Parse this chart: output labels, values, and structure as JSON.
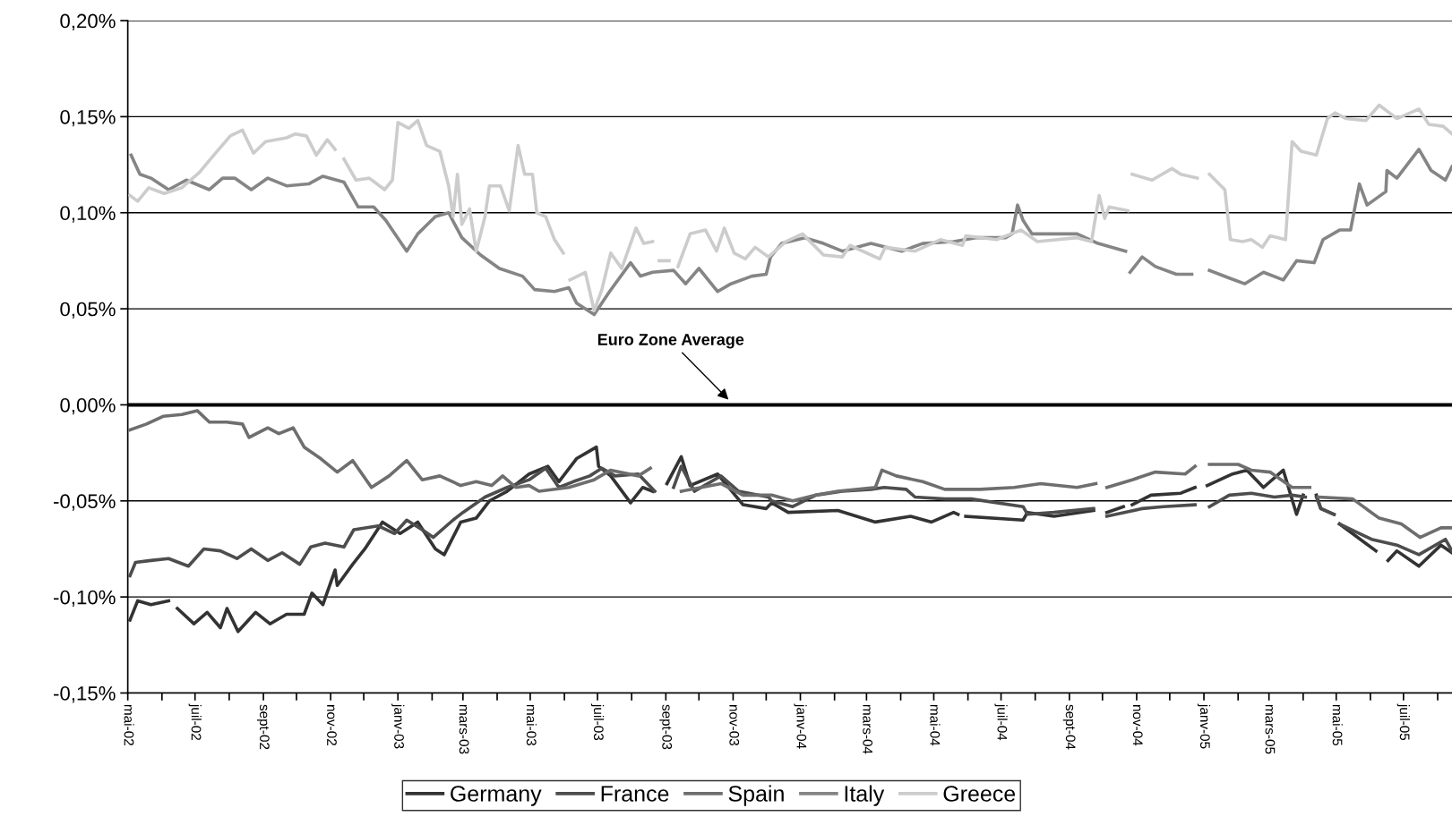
{
  "chart_data": {
    "type": "line",
    "xlim": [
      "2002-05-01",
      "2005-08-14"
    ],
    "xticks": [
      {
        "value": "2002-05-01",
        "label": "mai-02"
      },
      {
        "value": "2002-06-01",
        "label": null
      },
      {
        "value": "2002-07-01",
        "label": "juil-02"
      },
      {
        "value": "2002-08-01",
        "label": null
      },
      {
        "value": "2002-09-01",
        "label": "sept-02"
      },
      {
        "value": "2002-10-01",
        "label": null
      },
      {
        "value": "2002-11-01",
        "label": "nov-02"
      },
      {
        "value": "2002-12-01",
        "label": null
      },
      {
        "value": "2003-01-01",
        "label": "janv-03"
      },
      {
        "value": "2003-02-01",
        "label": null
      },
      {
        "value": "2003-03-01",
        "label": "mars-03"
      },
      {
        "value": "2003-04-01",
        "label": null
      },
      {
        "value": "2003-05-01",
        "label": "mai-03"
      },
      {
        "value": "2003-06-01",
        "label": null
      },
      {
        "value": "2003-07-01",
        "label": "juil-03"
      },
      {
        "value": "2003-08-01",
        "label": null
      },
      {
        "value": "2003-09-01",
        "label": "sept-03"
      },
      {
        "value": "2003-10-01",
        "label": null
      },
      {
        "value": "2003-11-01",
        "label": "nov-03"
      },
      {
        "value": "2003-12-01",
        "label": null
      },
      {
        "value": "2004-01-01",
        "label": "janv-04"
      },
      {
        "value": "2004-02-01",
        "label": null
      },
      {
        "value": "2004-03-01",
        "label": "mars-04"
      },
      {
        "value": "2004-04-01",
        "label": null
      },
      {
        "value": "2004-05-01",
        "label": "mai-04"
      },
      {
        "value": "2004-06-01",
        "label": null
      },
      {
        "value": "2004-07-01",
        "label": "juil-04"
      },
      {
        "value": "2004-08-01",
        "label": null
      },
      {
        "value": "2004-09-01",
        "label": "sept-04"
      },
      {
        "value": "2004-10-01",
        "label": null
      },
      {
        "value": "2004-11-01",
        "label": "nov-04"
      },
      {
        "value": "2004-12-01",
        "label": null
      },
      {
        "value": "2005-01-01",
        "label": "janv-05"
      },
      {
        "value": "2005-02-01",
        "label": null
      },
      {
        "value": "2005-03-01",
        "label": "mars-05"
      },
      {
        "value": "2005-04-01",
        "label": null
      },
      {
        "value": "2005-05-01",
        "label": "mai-05"
      },
      {
        "value": "2005-06-01",
        "label": null
      },
      {
        "value": "2005-07-01",
        "label": "juil-05"
      },
      {
        "value": "2005-08-01",
        "label": null
      }
    ],
    "ylim": [
      -0.15,
      0.2
    ],
    "yticks": [
      {
        "value": -0.15,
        "label": "-0,15%"
      },
      {
        "value": -0.1,
        "label": "-0,10%"
      },
      {
        "value": -0.05,
        "label": "-0,05%"
      },
      {
        "value": 0,
        "label": "0,00%"
      },
      {
        "value": 0.05,
        "label": "0,05%"
      },
      {
        "value": 0.1,
        "label": "0,10%"
      },
      {
        "value": 0.15,
        "label": "0,15%"
      },
      {
        "value": 0.2,
        "label": "0,20%"
      }
    ],
    "grid": "y",
    "legend": "bottom",
    "marker": "none",
    "line_style": "solid",
    "ref_lines": [
      {
        "axis": "y",
        "value": 0,
        "label": "Euro Zone Average",
        "color": "#000000"
      }
    ],
    "series": [
      {
        "name": "Germany",
        "color": "#333333",
        "x": [
          "2002-05-03",
          "2002-05-10",
          "2002-05-22",
          "2002-06-07",
          "2002-06-11",
          "2002-06-15",
          "2002-06-30",
          "2002-07-12",
          "2002-07-24",
          "2002-07-30",
          "2002-08-09",
          "2002-08-25",
          "2002-09-07",
          "2002-09-22",
          "2002-10-08",
          "2002-10-15",
          "2002-10-25",
          "2002-11-05",
          "2002-11-07",
          "2002-11-21",
          "2002-12-02",
          "2002-12-18",
          "2003-01-03",
          "2003-01-19",
          "2003-02-04",
          "2003-02-12",
          "2003-02-27",
          "2003-03-13",
          "2003-03-25",
          "2003-04-10",
          "2003-04-30",
          "2003-05-17",
          "2003-05-27",
          "2003-06-12",
          "2003-06-30",
          "2003-07-02",
          "2003-07-13",
          "2003-07-31",
          "2003-08-11",
          "2003-08-20",
          "2003-08-25",
          "2003-09-02",
          "2003-09-15",
          "2003-09-23",
          "2003-10-18",
          "2003-11-10",
          "2003-12-01",
          "2003-12-06",
          "2003-12-21",
          "2004-02-04",
          "2004-03-09",
          "2004-04-10",
          "2004-04-29",
          "2004-05-19",
          "2004-05-23",
          "2004-05-27",
          "2004-05-30",
          "2004-07-21",
          "2004-07-25",
          "2004-08-18",
          "2004-09-23",
          "2004-09-28",
          "2004-10-05",
          "2004-10-20",
          "2004-10-24",
          "2004-10-28",
          "2004-11-14",
          "2004-12-11",
          "2004-12-24",
          "2004-12-30",
          "2005-01-04",
          "2005-01-27",
          "2005-02-09",
          "2005-02-24",
          "2005-03-14",
          "2005-03-26",
          "2005-04-01",
          "2005-04-07",
          "2005-04-13",
          "2005-04-17",
          "2005-04-29",
          "2005-05-01",
          "2005-05-04",
          "2005-06-06",
          "2005-06-12",
          "2005-06-17",
          "2005-06-25",
          "2005-07-15",
          "2005-08-04",
          "2005-08-14"
        ],
        "values": [
          -0.112,
          -0.102,
          -0.104,
          -0.102,
          null,
          -0.106,
          -0.114,
          -0.108,
          -0.116,
          -0.106,
          -0.118,
          -0.108,
          -0.114,
          -0.109,
          -0.109,
          -0.098,
          -0.104,
          -0.086,
          -0.094,
          -0.083,
          -0.075,
          -0.061,
          -0.067,
          -0.061,
          -0.075,
          -0.078,
          -0.061,
          -0.059,
          -0.05,
          -0.045,
          -0.036,
          -0.032,
          -0.04,
          -0.028,
          -0.022,
          -0.032,
          -0.037,
          -0.051,
          -0.043,
          -0.045,
          null,
          -0.041,
          -0.027,
          -0.042,
          -0.036,
          -0.052,
          -0.054,
          -0.051,
          -0.056,
          -0.055,
          -0.061,
          -0.058,
          -0.061,
          -0.056,
          -0.057,
          null,
          -0.058,
          -0.06,
          -0.056,
          -0.058,
          -0.055,
          null,
          -0.056,
          -0.053,
          null,
          -0.052,
          -0.047,
          -0.046,
          -0.043,
          null,
          -0.042,
          -0.036,
          -0.034,
          -0.043,
          -0.034,
          -0.057,
          -0.047,
          null,
          -0.047,
          -0.054,
          -0.057,
          null,
          -0.062,
          -0.076,
          null,
          -0.081,
          -0.076,
          -0.084,
          -0.073,
          -0.077
        ]
      },
      {
        "name": "France",
        "color": "#4d4d4d",
        "x": [
          "2002-05-03",
          "2002-05-08",
          "2002-05-22",
          "2002-06-07",
          "2002-06-25",
          "2002-07-09",
          "2002-07-24",
          "2002-08-08",
          "2002-08-21",
          "2002-09-05",
          "2002-09-18",
          "2002-10-04",
          "2002-10-14",
          "2002-10-27",
          "2002-11-13",
          "2002-11-22",
          "2002-12-14",
          "2002-12-29",
          "2003-01-09",
          "2003-01-23",
          "2003-02-02",
          "2003-02-20",
          "2003-03-01",
          "2003-03-21",
          "2003-04-10",
          "2003-04-30",
          "2003-05-15",
          "2003-05-27",
          "2003-06-09",
          "2003-06-24",
          "2003-07-05",
          "2003-07-17",
          "2003-08-07",
          "2003-08-22",
          "2003-08-30",
          "2003-09-08",
          "2003-09-15",
          "2003-09-27",
          "2003-10-21",
          "2003-11-06",
          "2003-12-03",
          "2003-12-06",
          "2003-12-25",
          "2004-01-15",
          "2004-02-08",
          "2004-03-05",
          "2004-03-17",
          "2004-04-06",
          "2004-04-14",
          "2004-05-11",
          "2004-06-04",
          "2004-07-21",
          "2004-07-25",
          "2004-08-18",
          "2004-09-23",
          "2004-09-28",
          "2004-10-05",
          "2004-11-06",
          "2004-11-25",
          "2004-12-24",
          "2004-12-30",
          "2005-01-06",
          "2005-01-24",
          "2005-02-13",
          "2005-03-06",
          "2005-03-22",
          "2005-04-03",
          "2005-04-09",
          "2005-04-13",
          "2005-04-17",
          "2005-04-29",
          "2005-05-01",
          "2005-05-04",
          "2005-06-02",
          "2005-06-25",
          "2005-07-15",
          "2005-08-08",
          "2005-08-14"
        ],
        "values": [
          -0.089,
          -0.082,
          -0.081,
          -0.08,
          -0.084,
          -0.075,
          -0.076,
          -0.08,
          -0.075,
          -0.081,
          -0.077,
          -0.083,
          -0.074,
          -0.072,
          -0.074,
          -0.065,
          -0.063,
          -0.067,
          -0.06,
          -0.065,
          -0.069,
          -0.06,
          -0.056,
          -0.048,
          -0.043,
          -0.039,
          -0.033,
          -0.043,
          -0.04,
          -0.037,
          -0.033,
          -0.037,
          -0.036,
          -0.045,
          null,
          -0.043,
          -0.032,
          -0.045,
          -0.037,
          -0.045,
          -0.048,
          -0.05,
          -0.053,
          -0.047,
          -0.045,
          -0.044,
          -0.043,
          -0.044,
          -0.048,
          -0.049,
          -0.049,
          -0.053,
          -0.057,
          -0.056,
          -0.054,
          null,
          -0.058,
          -0.054,
          -0.053,
          -0.052,
          null,
          -0.053,
          -0.047,
          -0.046,
          -0.048,
          -0.047,
          -0.048,
          null,
          -0.048,
          -0.054,
          -0.057,
          null,
          -0.062,
          -0.07,
          -0.073,
          -0.078,
          -0.07,
          -0.076
        ]
      },
      {
        "name": "Spain",
        "color": "#6e6e6e",
        "x": [
          "2002-05-03",
          "2002-05-18",
          "2002-06-02",
          "2002-06-19",
          "2002-07-03",
          "2002-07-14",
          "2002-07-30",
          "2002-08-13",
          "2002-08-19",
          "2002-09-05",
          "2002-09-15",
          "2002-09-28",
          "2002-10-08",
          "2002-10-23",
          "2002-11-07",
          "2002-11-21",
          "2002-12-08",
          "2002-12-24",
          "2003-01-09",
          "2003-01-23",
          "2003-02-08",
          "2003-02-27",
          "2003-03-13",
          "2003-03-27",
          "2003-04-06",
          "2003-04-18",
          "2003-04-30",
          "2003-05-09",
          "2003-06-05",
          "2003-06-28",
          "2003-07-13",
          "2003-08-07",
          "2003-08-18",
          "2003-08-28",
          "2003-09-15",
          "2003-10-21",
          "2003-11-10",
          "2003-12-03",
          "2003-12-06",
          "2003-12-25",
          "2004-01-15",
          "2004-02-04",
          "2004-03-09",
          "2004-03-15",
          "2004-03-28",
          "2004-04-21",
          "2004-05-11",
          "2004-06-12",
          "2004-07-13",
          "2004-08-06",
          "2004-09-08",
          "2004-09-25",
          "2004-09-30",
          "2004-10-05",
          "2004-10-28",
          "2004-11-18",
          "2004-12-15",
          "2004-12-24",
          "2004-12-30",
          "2005-01-06",
          "2005-02-01",
          "2005-02-13",
          "2005-03-02",
          "2005-03-22",
          "2005-04-07",
          "2005-04-12",
          "2005-04-15",
          "2005-05-16",
          "2005-06-09",
          "2005-06-29",
          "2005-07-16",
          "2005-08-04",
          "2005-08-14"
        ],
        "values": [
          -0.013,
          -0.01,
          -0.006,
          -0.005,
          -0.003,
          -0.009,
          -0.009,
          -0.01,
          -0.017,
          -0.012,
          -0.015,
          -0.012,
          -0.022,
          -0.028,
          -0.035,
          -0.029,
          -0.043,
          -0.037,
          -0.029,
          -0.039,
          -0.037,
          -0.042,
          -0.04,
          -0.042,
          -0.037,
          -0.043,
          -0.042,
          -0.045,
          -0.043,
          -0.039,
          -0.034,
          -0.037,
          -0.033,
          null,
          -0.045,
          -0.041,
          -0.047,
          -0.047,
          -0.047,
          -0.05,
          -0.047,
          -0.045,
          -0.043,
          -0.034,
          -0.037,
          -0.04,
          -0.044,
          -0.044,
          -0.043,
          -0.041,
          -0.043,
          -0.041,
          null,
          -0.043,
          -0.039,
          -0.035,
          -0.036,
          -0.032,
          null,
          -0.031,
          -0.031,
          -0.034,
          -0.035,
          -0.043,
          -0.043,
          null,
          -0.048,
          -0.049,
          -0.059,
          -0.062,
          -0.069,
          -0.064,
          -0.064
        ]
      },
      {
        "name": "Italy",
        "color": "#858585",
        "x": [
          "2002-05-04",
          "2002-05-12",
          "2002-05-22",
          "2002-06-07",
          "2002-06-23",
          "2002-07-14",
          "2002-07-26",
          "2002-08-06",
          "2002-08-21",
          "2002-09-05",
          "2002-09-22",
          "2002-10-12",
          "2002-10-25",
          "2002-11-13",
          "2002-11-26",
          "2002-12-10",
          "2002-12-21",
          "2003-01-09",
          "2003-01-19",
          "2003-02-04",
          "2003-02-16",
          "2003-02-28",
          "2003-03-17",
          "2003-04-03",
          "2003-04-24",
          "2003-05-05",
          "2003-05-23",
          "2003-06-05",
          "2003-06-12",
          "2003-06-28",
          "2003-07-12",
          "2003-07-31",
          "2003-08-09",
          "2003-08-20",
          "2003-09-08",
          "2003-09-19",
          "2003-10-01",
          "2003-10-18",
          "2003-10-30",
          "2003-11-18",
          "2003-12-01",
          "2003-12-05",
          "2003-12-15",
          "2004-01-05",
          "2004-01-22",
          "2004-02-08",
          "2004-03-05",
          "2004-04-02",
          "2004-04-21",
          "2004-05-19",
          "2004-06-08",
          "2004-07-05",
          "2004-07-11",
          "2004-07-16",
          "2004-07-21",
          "2004-07-29",
          "2004-08-18",
          "2004-09-08",
          "2004-09-27",
          "2004-10-22",
          "2004-10-24",
          "2004-10-26",
          "2004-11-06",
          "2004-11-18",
          "2004-12-07",
          "2004-12-21",
          "2004-12-28",
          "2005-01-06",
          "2005-01-24",
          "2005-02-07",
          "2005-02-24",
          "2005-03-14",
          "2005-03-26",
          "2005-04-11",
          "2005-04-19",
          "2005-05-04",
          "2005-05-14",
          "2005-05-22",
          "2005-05-29",
          "2005-06-15",
          "2005-06-16",
          "2005-06-25",
          "2005-07-15",
          "2005-07-26",
          "2005-08-08",
          "2005-08-14"
        ],
        "values": [
          0.13,
          0.12,
          0.118,
          0.112,
          0.117,
          0.112,
          0.118,
          0.118,
          0.112,
          0.118,
          0.114,
          0.115,
          0.119,
          0.116,
          0.103,
          0.103,
          0.096,
          0.08,
          0.089,
          0.098,
          0.1,
          0.087,
          0.078,
          0.071,
          0.067,
          0.06,
          0.059,
          0.061,
          0.053,
          0.047,
          0.059,
          0.074,
          0.067,
          0.069,
          0.07,
          0.063,
          0.071,
          0.059,
          0.063,
          0.067,
          0.068,
          0.077,
          0.084,
          0.087,
          0.084,
          0.08,
          0.084,
          0.08,
          0.084,
          0.085,
          0.087,
          0.087,
          0.089,
          0.104,
          0.096,
          0.089,
          0.089,
          0.089,
          0.084,
          0.08,
          null,
          0.069,
          0.077,
          0.072,
          0.068,
          0.068,
          null,
          0.07,
          0.066,
          0.063,
          0.069,
          0.065,
          0.075,
          0.074,
          0.086,
          0.091,
          0.091,
          0.115,
          0.104,
          0.111,
          0.122,
          0.118,
          0.133,
          0.122,
          0.117,
          0.124
        ]
      },
      {
        "name": "Greece",
        "color": "#cccccc",
        "x": [
          "2002-05-03",
          "2002-05-10",
          "2002-05-20",
          "2002-06-03",
          "2002-06-19",
          "2002-07-05",
          "2002-07-18",
          "2002-08-02",
          "2002-08-13",
          "2002-08-23",
          "2002-09-03",
          "2002-09-22",
          "2002-09-30",
          "2002-10-10",
          "2002-10-19",
          "2002-10-29",
          "2002-11-05",
          "2002-11-09",
          "2002-11-13",
          "2002-11-24",
          "2002-12-06",
          "2002-12-20",
          "2002-12-27",
          "2003-01-01",
          "2003-01-11",
          "2003-01-19",
          "2003-01-27",
          "2003-02-08",
          "2003-02-16",
          "2003-02-20",
          "2003-02-24",
          "2003-02-28",
          "2003-03-07",
          "2003-03-13",
          "2003-03-21",
          "2003-03-25",
          "2003-04-04",
          "2003-04-12",
          "2003-04-20",
          "2003-04-26",
          "2003-05-03",
          "2003-05-07",
          "2003-05-15",
          "2003-05-23",
          "2003-05-31",
          "2003-06-04",
          "2003-06-06",
          "2003-06-20",
          "2003-06-28",
          "2003-07-05",
          "2003-07-13",
          "2003-07-23",
          "2003-08-05",
          "2003-08-12",
          "2003-08-20",
          "2003-08-23",
          "2003-08-26",
          "2003-09-04",
          "2003-09-08",
          "2003-09-12",
          "2003-09-23",
          "2003-10-07",
          "2003-10-17",
          "2003-10-24",
          "2003-11-02",
          "2003-11-12",
          "2003-11-21",
          "2003-12-03",
          "2003-12-19",
          "2004-01-03",
          "2004-01-22",
          "2004-02-08",
          "2004-02-15",
          "2004-03-13",
          "2004-03-18",
          "2004-04-14",
          "2004-05-07",
          "2004-05-27",
          "2004-05-30",
          "2004-06-27",
          "2004-07-19",
          "2004-08-03",
          "2004-09-08",
          "2004-09-21",
          "2004-09-28",
          "2004-10-03",
          "2004-10-07",
          "2004-10-24",
          "2004-10-26",
          "2004-10-28",
          "2004-11-15",
          "2004-12-03",
          "2004-12-11",
          "2004-12-26",
          "2005-01-01",
          "2005-01-06",
          "2005-01-20",
          "2005-01-25",
          "2005-02-05",
          "2005-02-13",
          "2005-02-23",
          "2005-03-02",
          "2005-03-16",
          "2005-03-22",
          "2005-03-30",
          "2005-04-13",
          "2005-04-23",
          "2005-04-30",
          "2005-05-10",
          "2005-05-28",
          "2005-06-09",
          "2005-06-25",
          "2005-07-15",
          "2005-07-24",
          "2005-08-06",
          "2005-08-14"
        ],
        "values": [
          0.109,
          0.106,
          0.113,
          0.11,
          0.113,
          0.121,
          0.13,
          0.14,
          0.143,
          0.131,
          0.137,
          0.139,
          0.141,
          0.14,
          0.13,
          0.138,
          0.133,
          null,
          0.128,
          0.117,
          0.118,
          0.112,
          0.117,
          0.147,
          0.144,
          0.148,
          0.135,
          0.132,
          0.114,
          0.098,
          0.12,
          0.094,
          0.102,
          0.08,
          0.098,
          0.114,
          0.114,
          0.101,
          0.135,
          0.12,
          0.12,
          0.1,
          0.098,
          0.086,
          0.079,
          null,
          0.065,
          0.069,
          0.049,
          0.06,
          0.079,
          0.071,
          0.092,
          0.084,
          0.085,
          null,
          0.075,
          0.075,
          null,
          0.072,
          0.089,
          0.091,
          0.08,
          0.092,
          0.079,
          0.076,
          0.082,
          0.077,
          0.085,
          0.089,
          0.078,
          0.077,
          0.083,
          0.076,
          0.082,
          0.08,
          0.086,
          0.083,
          0.088,
          0.086,
          0.091,
          0.085,
          0.087,
          0.085,
          0.109,
          0.097,
          0.103,
          0.101,
          null,
          0.12,
          0.117,
          0.123,
          0.12,
          0.118,
          null,
          0.12,
          0.112,
          0.086,
          0.085,
          0.086,
          0.082,
          0.088,
          0.086,
          0.137,
          0.132,
          0.13,
          0.149,
          0.152,
          0.149,
          0.148,
          0.156,
          0.149,
          0.154,
          0.146,
          0.145,
          0.141
        ]
      }
    ]
  }
}
